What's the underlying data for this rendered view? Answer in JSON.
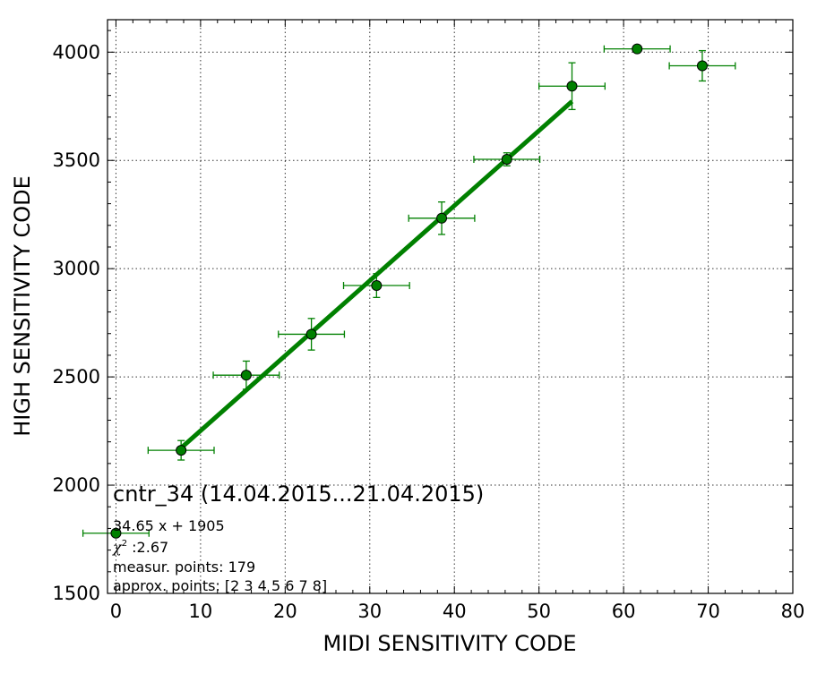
{
  "chart_data": {
    "type": "scatter",
    "title": "cntr_34 (14.04.2015...21.04.2015)",
    "xlabel": "MIDI SENSITIVITY CODE",
    "ylabel": "HIGH SENSITIVITY CODE",
    "xlim": [
      -1,
      80
    ],
    "ylim": [
      1500,
      4150
    ],
    "xticks": [
      0,
      10,
      20,
      30,
      40,
      50,
      60,
      70,
      80
    ],
    "yticks": [
      1500,
      2000,
      2500,
      3000,
      3500,
      4000
    ],
    "grid": true,
    "colors": {
      "series": "#008000",
      "marker_edge": "#000000"
    },
    "points": [
      {
        "x": 0.0,
        "y": 1778,
        "xerr": 3.9,
        "yerr": 0
      },
      {
        "x": 7.7,
        "y": 2161,
        "xerr": 3.9,
        "yerr": 45
      },
      {
        "x": 15.4,
        "y": 2508,
        "xerr": 3.9,
        "yerr": 65
      },
      {
        "x": 23.1,
        "y": 2697,
        "xerr": 3.9,
        "yerr": 73
      },
      {
        "x": 30.8,
        "y": 2922,
        "xerr": 3.9,
        "yerr": 55
      },
      {
        "x": 38.5,
        "y": 3233,
        "xerr": 3.9,
        "yerr": 75
      },
      {
        "x": 46.2,
        "y": 3505,
        "xerr": 3.9,
        "yerr": 30
      },
      {
        "x": 53.9,
        "y": 3843,
        "xerr": 3.9,
        "yerr": 108
      },
      {
        "x": 61.6,
        "y": 4015,
        "xerr": 3.9,
        "yerr": 0
      },
      {
        "x": 69.3,
        "y": 3937,
        "xerr": 3.9,
        "yerr": 70
      }
    ],
    "fit": {
      "slope": 34.65,
      "intercept": 1905,
      "x_range": [
        7.7,
        53.9
      ]
    },
    "annotations": {
      "equation": "34.65 x + 1905",
      "chi2_symbol": "χ",
      "chi2_exp": "2",
      "chi2_value": " :2.67",
      "measur_points": "measur. points: 179",
      "approx_points": "approx. points: [2 3 4 5 6 7 8]"
    }
  }
}
